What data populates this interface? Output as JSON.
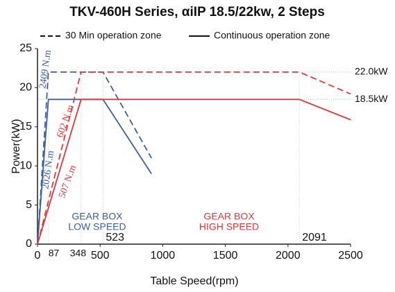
{
  "chart_data": {
    "type": "line",
    "title": "TKV-460H Series, αiIP 18.5/22kw, 2 Steps",
    "xlabel": "Table Speed(rpm)",
    "ylabel": "Power(kW)",
    "xlim": [
      0,
      2500
    ],
    "xticks": [
      0,
      500,
      1000,
      1500,
      2000,
      2500
    ],
    "ylim": [
      0,
      25
    ],
    "yticks": [
      0,
      5,
      10,
      15,
      20,
      25
    ],
    "legend": [
      {
        "label": "30 Min operation zone",
        "dash": true
      },
      {
        "label": "Continuous operation zone",
        "dash": false
      }
    ],
    "series": [
      {
        "color": "#3a5fa8",
        "dash": true,
        "x": [
          0,
          87,
          523,
          910
        ],
        "values": [
          0,
          22,
          22,
          11
        ]
      },
      {
        "color": "#3a5fa8",
        "dash": false,
        "x": [
          0,
          87,
          523,
          910
        ],
        "values": [
          0,
          18.5,
          18.5,
          9
        ]
      },
      {
        "color": "#e8343a",
        "dash": true,
        "x": [
          0,
          348,
          2091,
          2500
        ],
        "values": [
          0,
          22,
          22,
          19.2
        ]
      },
      {
        "color": "#e8343a",
        "dash": false,
        "x": [
          0,
          348,
          2091,
          2500
        ],
        "values": [
          0,
          18.5,
          18.5,
          15.9
        ]
      }
    ],
    "power_levels": [
      {
        "value": 22,
        "label": "22.0kW"
      },
      {
        "value": 18.5,
        "label": "18.5kW"
      }
    ],
    "lower_speed_marks": [
      87,
      348
    ],
    "upper_speed_marks": [
      523,
      2091
    ],
    "annotations": [
      {
        "text": "2409 N.m",
        "color": "#3a5fa8"
      },
      {
        "text": "2026 N.m",
        "color": "#3a5fa8"
      },
      {
        "text": "602 N.m",
        "color": "#e8343a"
      },
      {
        "text": "507 N.m",
        "color": "#e8343a"
      }
    ],
    "gear_labels": [
      {
        "lines": [
          "GEAR BOX",
          "LOW SPEED"
        ],
        "color": "#3a5fa8"
      },
      {
        "lines": [
          "GEAR BOX",
          "HIGH SPEED"
        ],
        "color": "#e8343a"
      }
    ]
  }
}
